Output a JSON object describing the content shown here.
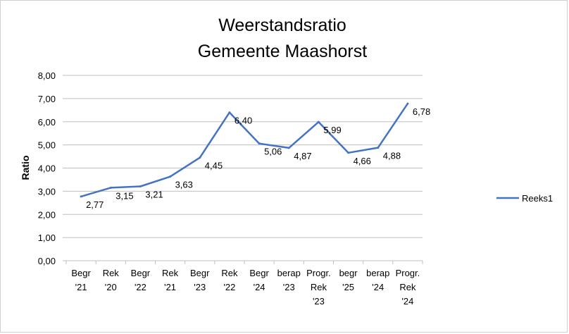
{
  "chart_data": {
    "type": "line",
    "title": [
      "Weerstandsratio",
      "Gemeente Maashorst"
    ],
    "xlabel": "",
    "ylabel": "Ratio",
    "ylim": [
      0,
      8
    ],
    "y_ticks": [
      "0,00",
      "1,00",
      "2,00",
      "3,00",
      "4,00",
      "5,00",
      "6,00",
      "7,00",
      "8,00"
    ],
    "categories": [
      [
        "Begr",
        "'21"
      ],
      [
        "Rek",
        "'20"
      ],
      [
        "Begr",
        "'22"
      ],
      [
        "Rek",
        "'21"
      ],
      [
        "Begr",
        "'23"
      ],
      [
        "Rek",
        "'22"
      ],
      [
        "Begr",
        "'24"
      ],
      [
        "berap",
        "'23"
      ],
      [
        "Progr.",
        "Rek",
        "'23"
      ],
      [
        "begr",
        "'25"
      ],
      [
        "berap",
        "'24"
      ],
      [
        "Progr.",
        "Rek",
        "'24"
      ]
    ],
    "series": [
      {
        "name": "Reeks1",
        "values": [
          2.77,
          3.15,
          3.21,
          3.63,
          4.45,
          6.4,
          5.06,
          4.87,
          5.99,
          4.66,
          4.88,
          6.78
        ],
        "labels": [
          "2,77",
          "3,15",
          "3,21",
          "3,63",
          "4,45",
          "6,40",
          "5,06",
          "4,87",
          "5,99",
          "4,66",
          "4,88",
          "6,78"
        ],
        "color": "#4472C4"
      }
    ],
    "grid": true,
    "legend_position": "right"
  }
}
